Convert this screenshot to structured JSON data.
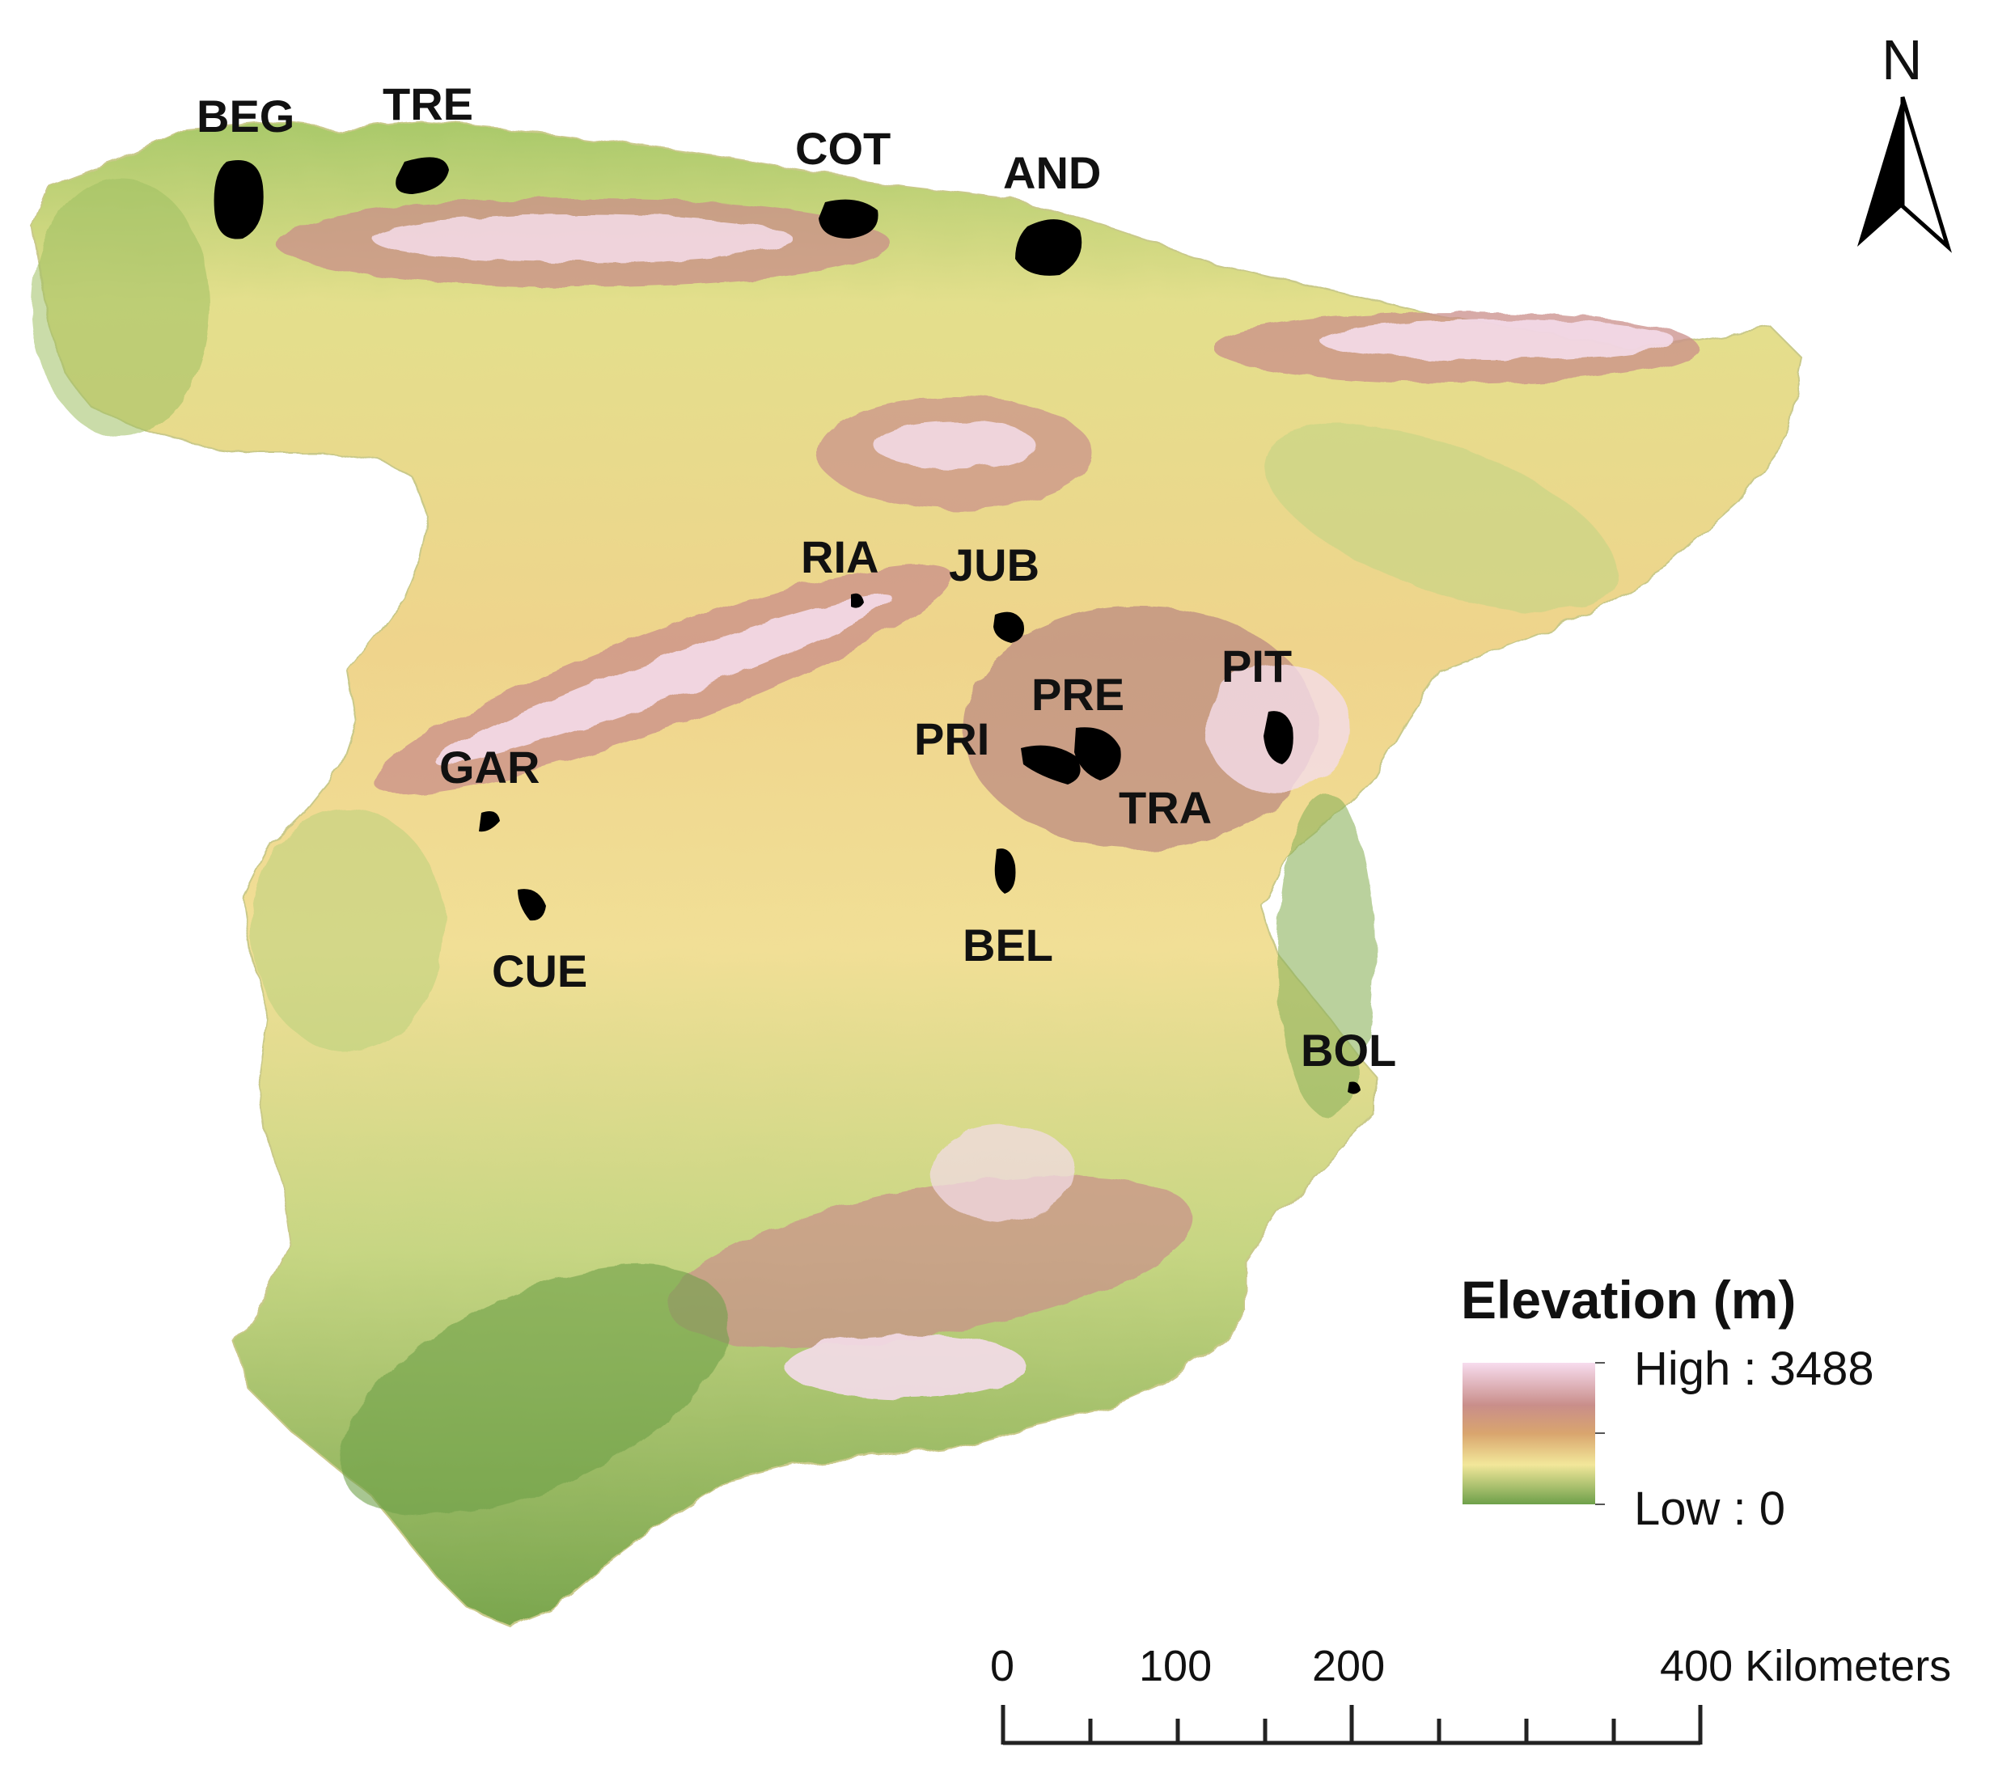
{
  "map": {
    "sites": [
      {
        "code": "BEG"
      },
      {
        "code": "TRE"
      },
      {
        "code": "COT"
      },
      {
        "code": "AND"
      },
      {
        "code": "RIA"
      },
      {
        "code": "JUB"
      },
      {
        "code": "PIT"
      },
      {
        "code": "PRE"
      },
      {
        "code": "PRI"
      },
      {
        "code": "TRA"
      },
      {
        "code": "GAR"
      },
      {
        "code": "CUE"
      },
      {
        "code": "BEL"
      },
      {
        "code": "BOL"
      }
    ],
    "north_arrow": {
      "label": "N"
    },
    "legend": {
      "title": "Elevation (m)",
      "high_label": "High : 3488",
      "low_label": "Low : 0",
      "high_value": 3488,
      "low_value": 0,
      "colors": {
        "high": "#f7dcee",
        "upper": "#c98e8a",
        "mid_high": "#d9a56e",
        "mid": "#f2e79a",
        "low": "#6ea04a"
      }
    },
    "scale_bar": {
      "labels": [
        "0",
        "100",
        "200",
        "400 Kilometers"
      ],
      "values_km": [
        0,
        100,
        200,
        400
      ]
    }
  }
}
